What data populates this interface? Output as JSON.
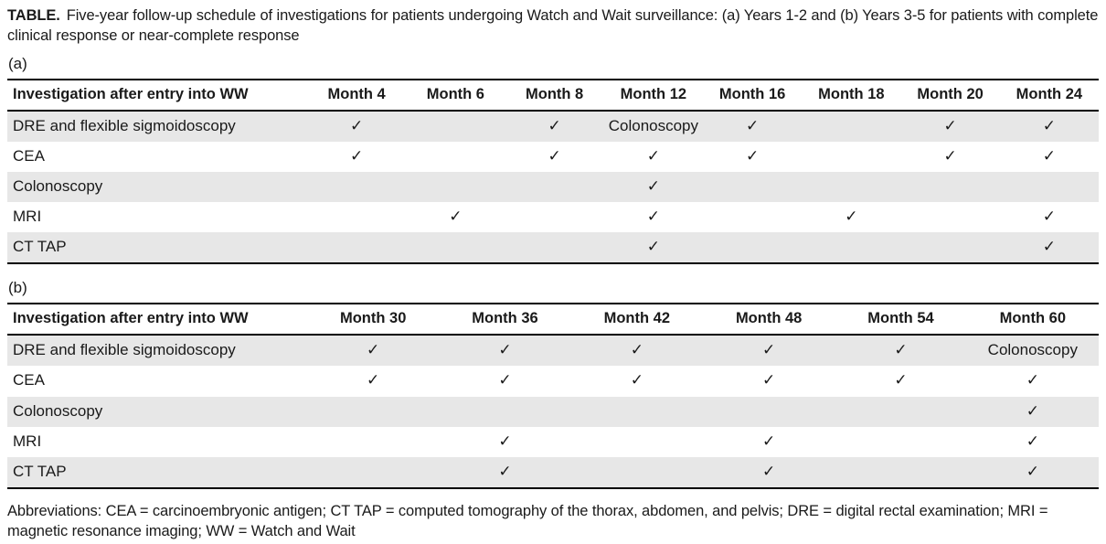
{
  "document": {
    "title_label": "TABLE.",
    "title_text": "Five-year follow-up schedule of investigations for patients undergoing Watch and Wait surveillance: (a) Years 1-2 and (b) Years 3-5 for patients with complete clinical response or near-complete response",
    "footnote": "Abbreviations: CEA = carcinoembryonic antigen; CT TAP = computed tomography of the thorax, abdomen, and pelvis; DRE = digital rectal examination; MRI = magnetic resonance imaging; WW = Watch and Wait"
  },
  "symbols": {
    "check": "✓"
  },
  "colors": {
    "row_stripe": "#e7e7e7",
    "border": "#000000",
    "text": "#1a1a1a",
    "background": "#ffffff"
  },
  "tables": [
    {
      "label": "(a)",
      "header": [
        "Investigation after entry into WW",
        "Month 4",
        "Month 6",
        "Month 8",
        "Month 12",
        "Month 16",
        "Month 18",
        "Month 20",
        "Month 24"
      ],
      "rows": [
        {
          "name": "DRE and flexible sigmoidoscopy",
          "cells": [
            "✓",
            "",
            "✓",
            "Colonoscopy",
            "✓",
            "",
            "✓",
            "✓"
          ]
        },
        {
          "name": "CEA",
          "cells": [
            "✓",
            "",
            "✓",
            "✓",
            "✓",
            "",
            "✓",
            "✓"
          ]
        },
        {
          "name": "Colonoscopy",
          "cells": [
            "",
            "",
            "",
            "✓",
            "",
            "",
            "",
            ""
          ]
        },
        {
          "name": "MRI",
          "cells": [
            "",
            "✓",
            "",
            "✓",
            "",
            "✓",
            "",
            "✓"
          ]
        },
        {
          "name": "CT TAP",
          "cells": [
            "",
            "",
            "",
            "✓",
            "",
            "",
            "",
            "✓"
          ]
        }
      ]
    },
    {
      "label": "(b)",
      "header": [
        "Investigation after entry into WW",
        "Month 30",
        "Month 36",
        "Month 42",
        "Month 48",
        "Month 54",
        "Month 60"
      ],
      "rows": [
        {
          "name": "DRE and flexible sigmoidoscopy",
          "cells": [
            "✓",
            "✓",
            "✓",
            "✓",
            "✓",
            "Colonoscopy"
          ]
        },
        {
          "name": "CEA",
          "cells": [
            "✓",
            "✓",
            "✓",
            "✓",
            "✓",
            "✓"
          ]
        },
        {
          "name": "Colonoscopy",
          "cells": [
            "",
            "",
            "",
            "",
            "",
            "✓"
          ]
        },
        {
          "name": "MRI",
          "cells": [
            "",
            "✓",
            "",
            "✓",
            "",
            "✓"
          ]
        },
        {
          "name": "CT TAP",
          "cells": [
            "",
            "✓",
            "",
            "✓",
            "",
            "✓"
          ]
        }
      ]
    }
  ]
}
